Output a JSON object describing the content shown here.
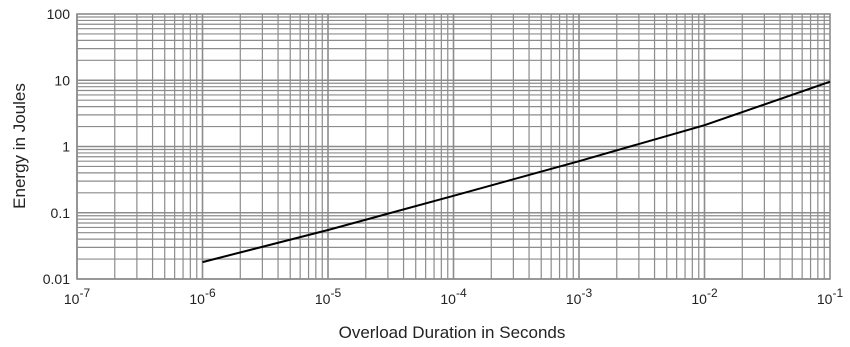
{
  "chart_data": {
    "type": "line",
    "title": "",
    "xlabel": "Overload Duration in Seconds",
    "ylabel": "Energy in Joules",
    "x_scale": "log",
    "y_scale": "log",
    "xlim": [
      1e-07,
      0.1
    ],
    "ylim": [
      0.01,
      100
    ],
    "grid": true,
    "x_tick_labels": [
      {
        "value": 1e-07,
        "base": "10",
        "exp": "-7"
      },
      {
        "value": 1e-06,
        "base": "10",
        "exp": "-6"
      },
      {
        "value": 1e-05,
        "base": "10",
        "exp": "-5"
      },
      {
        "value": 0.0001,
        "base": "10",
        "exp": "-4"
      },
      {
        "value": 0.001,
        "base": "10",
        "exp": "-3"
      },
      {
        "value": 0.01,
        "base": "10",
        "exp": "-2"
      },
      {
        "value": 0.1,
        "base": "10",
        "exp": "-1"
      }
    ],
    "y_tick_labels": [
      {
        "value": 0.01,
        "label": "0.01"
      },
      {
        "value": 0.1,
        "label": "0.1"
      },
      {
        "value": 1,
        "label": "1"
      },
      {
        "value": 10,
        "label": "10"
      },
      {
        "value": 100,
        "label": "100"
      }
    ],
    "colors": {
      "grid": "#8c8c8c",
      "line": "#000000"
    },
    "series": [
      {
        "x": [
          1e-06,
          1e-05,
          0.0001,
          0.001,
          0.01,
          0.1
        ],
        "y": [
          0.018,
          0.055,
          0.18,
          0.6,
          2.1,
          9.5
        ]
      }
    ]
  }
}
